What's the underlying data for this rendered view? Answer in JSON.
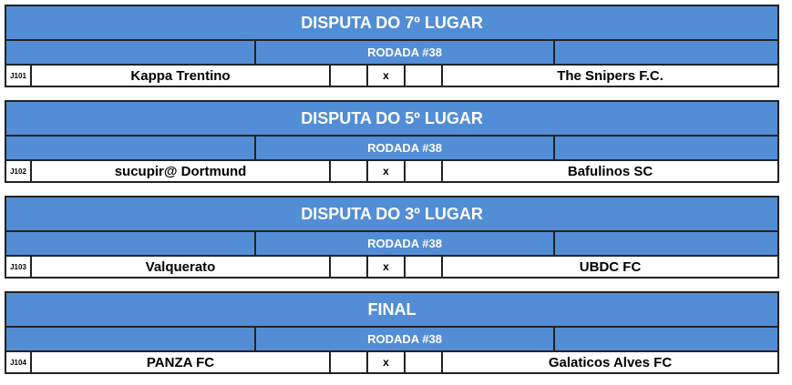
{
  "color_header": "#538dd5",
  "matches": [
    {
      "title": "DISPUTA DO 7º LUGAR",
      "round": "RODADA #38",
      "code": "J101",
      "home": "Kappa Trentino",
      "home_score": "",
      "vs": "x",
      "away_score": "",
      "away": "The Snipers F.C."
    },
    {
      "title": "DISPUTA DO 5º LUGAR",
      "round": "RODADA #38",
      "code": "J102",
      "home": "sucupir@ Dortmund",
      "home_score": "",
      "vs": "x",
      "away_score": "",
      "away": "Bafulinos SC"
    },
    {
      "title": "DISPUTA DO 3º LUGAR",
      "round": "RODADA #38",
      "code": "J103",
      "home": "Valquerato",
      "home_score": "",
      "vs": "x",
      "away_score": "",
      "away": "UBDC FC"
    },
    {
      "title": "FINAL",
      "round": "RODADA #38",
      "code": "J104",
      "home": "PANZA FC",
      "home_score": "",
      "vs": "x",
      "away_score": "",
      "away": "Galaticos  Alves FC"
    }
  ]
}
